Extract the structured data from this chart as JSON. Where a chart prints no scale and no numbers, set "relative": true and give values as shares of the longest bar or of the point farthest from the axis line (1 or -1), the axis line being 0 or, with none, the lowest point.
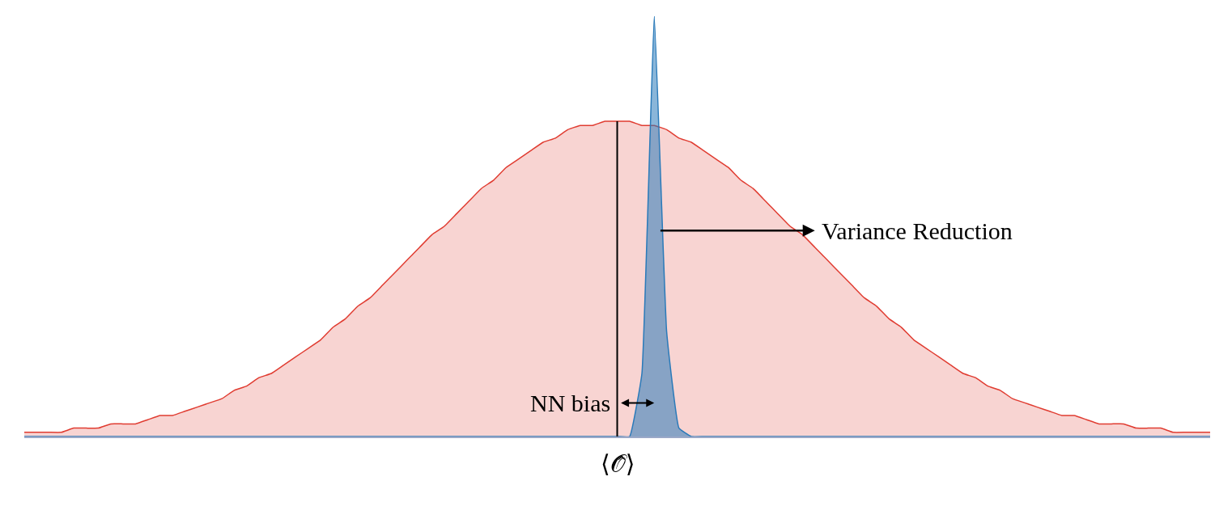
{
  "chart_data": {
    "type": "area",
    "relative": true,
    "categories": [
      null,
      null,
      null,
      null,
      null,
      null,
      null,
      null,
      null,
      null,
      null,
      null,
      null,
      null,
      null,
      null,
      null,
      null,
      null,
      null,
      null,
      null,
      null,
      null,
      null,
      null,
      null,
      null,
      null,
      null,
      null,
      null,
      null,
      null,
      null,
      null,
      null,
      null,
      null,
      null,
      null,
      null,
      null,
      null,
      null,
      null,
      null,
      null,
      null,
      null,
      null,
      null,
      null,
      null,
      null,
      null,
      null,
      null,
      null,
      null,
      null,
      null,
      null,
      null,
      null,
      null,
      null,
      null,
      null,
      null,
      null,
      null,
      null,
      null,
      null,
      null,
      null,
      null,
      null,
      null,
      null,
      null,
      null,
      null,
      null,
      null,
      null,
      null,
      null,
      null,
      null,
      null,
      null,
      null,
      null,
      null,
      null
    ],
    "series": [
      {
        "color": "#e03c31",
        "values": [
          0.01,
          0.01,
          0.01,
          0.01,
          0.02,
          0.02,
          0.02,
          0.03,
          0.03,
          0.03,
          0.04,
          0.05,
          0.05,
          0.06,
          0.07,
          0.08,
          0.09,
          0.11,
          0.12,
          0.14,
          0.15,
          0.17,
          0.19,
          0.21,
          0.23,
          0.26,
          0.28,
          0.31,
          0.33,
          0.36,
          0.39,
          0.42,
          0.45,
          0.48,
          0.5,
          0.53,
          0.56,
          0.59,
          0.61,
          0.64,
          0.66,
          0.68,
          0.7,
          0.71,
          0.73,
          0.74,
          0.74,
          0.75,
          0.75,
          0.75,
          0.74,
          0.74,
          0.73,
          0.71,
          0.7,
          0.68,
          0.66,
          0.64,
          0.61,
          0.59,
          0.56,
          0.53,
          0.5,
          0.48,
          0.45,
          0.42,
          0.39,
          0.36,
          0.33,
          0.31,
          0.28,
          0.26,
          0.23,
          0.21,
          0.19,
          0.17,
          0.15,
          0.14,
          0.12,
          0.11,
          0.09,
          0.08,
          0.07,
          0.06,
          0.05,
          0.05,
          0.04,
          0.03,
          0.03,
          0.03,
          0.02,
          0.02,
          0.02,
          0.01,
          0.01,
          0.01,
          0.01
        ]
      },
      {
        "color": "#2a7ab9",
        "values": [
          0,
          0,
          0,
          0,
          0,
          0,
          0,
          0,
          0,
          0,
          0,
          0,
          0,
          0,
          0,
          0,
          0,
          0,
          0,
          0,
          0,
          0,
          0,
          0,
          0,
          0,
          0,
          0,
          0,
          0,
          0,
          0,
          0,
          0,
          0,
          0,
          0,
          0,
          0,
          0,
          0,
          0,
          0,
          0,
          0,
          0,
          0,
          0,
          0,
          0,
          0.15,
          1,
          0.25,
          0.02,
          0,
          0,
          0,
          0,
          0,
          0,
          0,
          0,
          0,
          0,
          0,
          0,
          0,
          0,
          0,
          0,
          0,
          0,
          0,
          0,
          0,
          0,
          0,
          0,
          0,
          0,
          0,
          0,
          0,
          0,
          0,
          0,
          0,
          0,
          0,
          0,
          0,
          0,
          0,
          0,
          0,
          0,
          0
        ]
      }
    ],
    "annotations": [
      "Variance Reduction",
      "NN bias",
      "⟨𝒪̂⟩"
    ]
  }
}
